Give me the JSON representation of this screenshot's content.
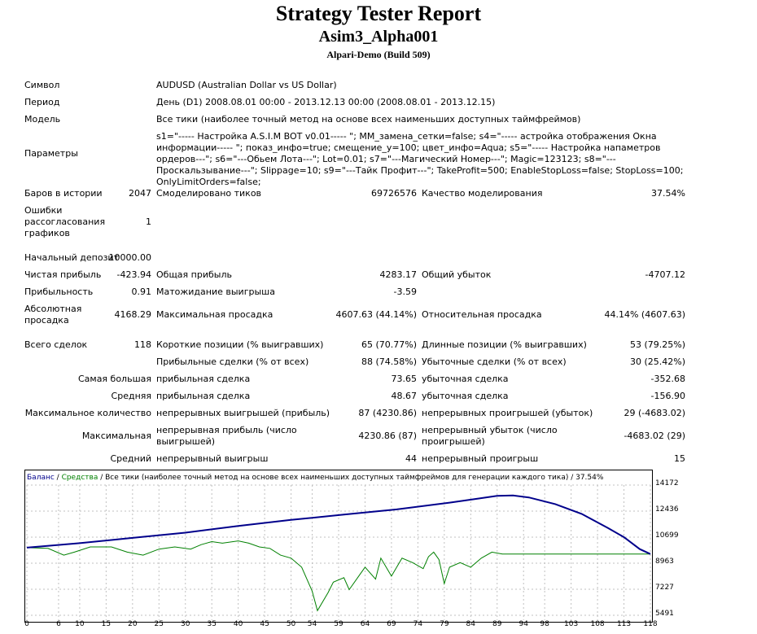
{
  "report": {
    "title": "Strategy Tester Report",
    "expert": "Asim3_Alpha001",
    "server": "Alpari-Demo (Build 509)"
  },
  "info": {
    "symbol_label": "Символ",
    "symbol_value": "AUDUSD (Australian Dollar vs US Dollar)",
    "period_label": "Период",
    "period_value": "День (D1) 2008.08.01 00:00 - 2013.12.13 00:00 (2008.08.01 - 2013.12.15)",
    "model_label": "Модель",
    "model_value": "Все тики (наиболее точный метод на основе всех наименьших доступных таймфреймов)",
    "params_label": "Параметры",
    "params_value": "s1=\"----- Настройка A.S.I.M BOT v0.01----- \"; MM_замена_сетки=false; s4=\"----- астройка отображения Окна информации----- \"; показ_инфо=true; смещение_у=100; цвет_инфо=Aqua; s5=\"----- Настройка напаметров ордеров---\"; s6=\"---Обьем Лота---\"; Lot=0.01; s7=\"---Магический Номер---\"; Magic=123123; s8=\"---Проскальзывание---\"; Slippage=10; s9=\"---Тайк Профит---\"; TakeProfit=500; EnableStopLoss=false; StopLoss=100; OnlyLimitOrders=false;"
  },
  "stats": {
    "bars_label": "Баров в истории",
    "bars_value": "2047",
    "ticks_label": "Смоделировано тиков",
    "ticks_value": "69726576",
    "quality_label": "Качество моделирования",
    "quality_value": "37.54%",
    "errors_label": "Ошибки рассогласования графиков",
    "errors_value": "1",
    "deposit_label": "Начальный депозит",
    "deposit_value": "10000.00",
    "net_label": "Чистая прибыль",
    "net_value": "-423.94",
    "gross_profit_label": "Общая прибыль",
    "gross_profit_value": "4283.17",
    "gross_loss_label": "Общий убыток",
    "gross_loss_value": "-4707.12",
    "pf_label": "Прибыльность",
    "pf_value": "0.91",
    "expected_label": "Матожидание выигрыша",
    "expected_value": "-3.59",
    "abs_dd_label": "Абсолютная просадка",
    "abs_dd_value": "4168.29",
    "max_dd_label": "Максимальная просадка",
    "max_dd_value": "4607.63 (44.14%)",
    "rel_dd_label": "Относительная просадка",
    "rel_dd_value": "44.14% (4607.63)",
    "total_label": "Всего сделок",
    "total_value": "118",
    "short_label": "Короткие позиции (% выигравших)",
    "short_value": "65 (70.77%)",
    "long_label": "Длинные позиции (% выигравших)",
    "long_value": "53 (79.25%)",
    "profit_trades_label": "Прибыльные сделки (% от всех)",
    "profit_trades_value": "88 (74.58%)",
    "loss_trades_label": "Убыточные сделки (% от всех)",
    "loss_trades_value": "30 (25.42%)",
    "largest_label": "Самая большая",
    "largest_profit_label": "прибыльная сделка",
    "largest_profit_value": "73.65",
    "largest_loss_label": "убыточная сделка",
    "largest_loss_value": "-352.68",
    "average_label": "Средняя",
    "avg_profit_label": "прибыльная сделка",
    "avg_profit_value": "48.67",
    "avg_loss_label": "убыточная сделка",
    "avg_loss_value": "-156.90",
    "max_count_label": "Максимальное количество",
    "max_wins_label": "непрерывных выигрышей (прибыль)",
    "max_wins_value": "87 (4230.86)",
    "max_losses_label": "непрерывных проигрышей (убыток)",
    "max_losses_value": "29 (-4683.02)",
    "maximal_label": "Максимальная",
    "max_profit_label": "непрерывная прибыль (число выигрышей)",
    "max_profit_value": "4230.86 (87)",
    "max_loss_label": "непрерывный убыток (число проигрышей)",
    "max_loss_value": "-4683.02 (29)",
    "avg_cons_label": "Средний",
    "avg_wins_label": "непрерывный выигрыш",
    "avg_wins_value": "44",
    "avg_losses_label": "непрерывный проигрыш",
    "avg_losses_value": "15"
  },
  "chart_data": {
    "type": "line",
    "legend": {
      "balance": "Баланс",
      "sep1": " / ",
      "equity": "Средства",
      "rest": " / Все тики (наиболее точный метод на основе всех наименьших доступных таймфреймов для генерации каждого тика) / 37.54%"
    },
    "colors": {
      "balance": "#00008b",
      "equity": "#008000",
      "grid": "#c0c0c0"
    },
    "x_ticks": [
      "0",
      "6",
      "10",
      "15",
      "20",
      "25",
      "30",
      "35",
      "40",
      "45",
      "50",
      "54",
      "59",
      "64",
      "69",
      "74",
      "79",
      "84",
      "89",
      "94",
      "98",
      "103",
      "108",
      "113",
      "118"
    ],
    "y_ticks": [
      "14172",
      "12436",
      "10699",
      "8963",
      "7227",
      "5491"
    ],
    "ylim": [
      5491,
      14172
    ],
    "xlim": [
      0,
      118
    ],
    "series": [
      {
        "name": "Баланс",
        "points": [
          [
            0,
            10000
          ],
          [
            10,
            10300
          ],
          [
            20,
            10650
          ],
          [
            30,
            11000
          ],
          [
            40,
            11450
          ],
          [
            50,
            11850
          ],
          [
            60,
            12200
          ],
          [
            70,
            12550
          ],
          [
            80,
            13000
          ],
          [
            85,
            13250
          ],
          [
            89,
            13450
          ],
          [
            92,
            13480
          ],
          [
            95,
            13350
          ],
          [
            100,
            12900
          ],
          [
            105,
            12250
          ],
          [
            110,
            11300
          ],
          [
            113,
            10700
          ],
          [
            116,
            9900
          ],
          [
            118,
            9576
          ]
        ]
      },
      {
        "name": "Средства",
        "points": [
          [
            0,
            10000
          ],
          [
            4,
            9950
          ],
          [
            7,
            9500
          ],
          [
            9,
            9700
          ],
          [
            12,
            10050
          ],
          [
            16,
            10050
          ],
          [
            19,
            9700
          ],
          [
            22,
            9500
          ],
          [
            25,
            9900
          ],
          [
            28,
            10050
          ],
          [
            31,
            9900
          ],
          [
            33,
            10200
          ],
          [
            35,
            10400
          ],
          [
            37,
            10300
          ],
          [
            40,
            10450
          ],
          [
            42,
            10300
          ],
          [
            44,
            10050
          ],
          [
            46,
            9950
          ],
          [
            48,
            9500
          ],
          [
            50,
            9300
          ],
          [
            52,
            8700
          ],
          [
            54,
            7100
          ],
          [
            55,
            5800
          ],
          [
            57,
            7000
          ],
          [
            58,
            7700
          ],
          [
            60,
            8000
          ],
          [
            61,
            7200
          ],
          [
            63,
            8200
          ],
          [
            64,
            8700
          ],
          [
            66,
            7900
          ],
          [
            67,
            9300
          ],
          [
            69,
            8100
          ],
          [
            71,
            9300
          ],
          [
            73,
            9000
          ],
          [
            75,
            8600
          ],
          [
            76,
            9400
          ],
          [
            77,
            9700
          ],
          [
            78,
            9200
          ],
          [
            79,
            7600
          ],
          [
            80,
            8700
          ],
          [
            82,
            9000
          ],
          [
            84,
            8700
          ],
          [
            86,
            9300
          ],
          [
            88,
            9700
          ],
          [
            90,
            9576
          ],
          [
            93,
            9576
          ],
          [
            100,
            9576
          ],
          [
            110,
            9576
          ],
          [
            118,
            9576
          ]
        ]
      }
    ]
  }
}
